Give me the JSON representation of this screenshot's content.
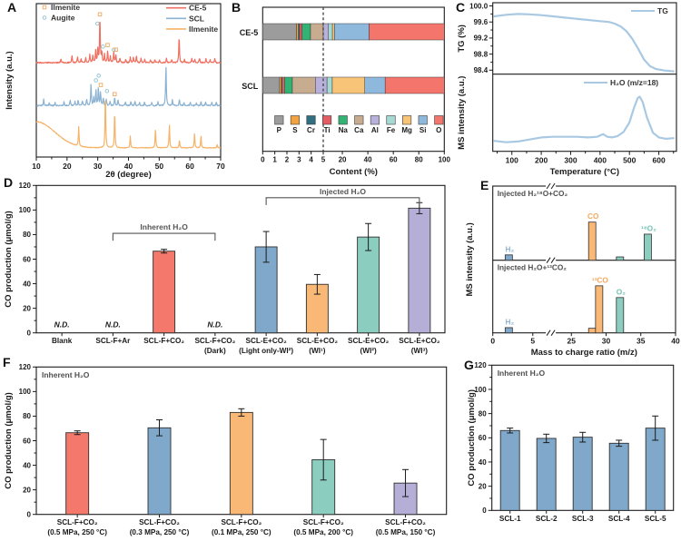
{
  "palette": {
    "red": "#F4796C",
    "blue": "#7FA8CB",
    "orange": "#FAB876",
    "teal": "#8BCEC0",
    "purple": "#B5AFD7",
    "frame": "#1a1a1a",
    "annotation_gray": "#4f4f4f",
    "bracket_gray": "#555555"
  },
  "chart_data": [
    {
      "panel_letter": "A",
      "type": "line",
      "kind": "xrd",
      "xlabel": "2θ (degree)",
      "ylabel": "Intensity (a.u.)",
      "xlim": [
        10,
        70
      ],
      "xticks": [
        10,
        20,
        30,
        40,
        50,
        60,
        70
      ],
      "marker_legend": [
        {
          "label": "Ilmenite",
          "marker": "square",
          "color": "#F0A860"
        },
        {
          "label": "Augite",
          "marker": "circle",
          "color": "#8FC0CE"
        }
      ],
      "line_legend": [
        {
          "label": "CE-5",
          "color": "#EF6F60"
        },
        {
          "label": "SCL",
          "color": "#8AB2D2"
        },
        {
          "label": "Ilmenite",
          "color": "#F6B266"
        }
      ],
      "series": [
        {
          "name": "CE-5",
          "color": "#EF6F60",
          "baseline": 0.615,
          "amp": 0.4,
          "noise": 0.008,
          "peaks": [
            [
              18,
              0.07
            ],
            [
              21.6,
              0.12
            ],
            [
              23.4,
              0.09
            ],
            [
              24.6,
              0.06
            ],
            [
              26.1,
              0.08
            ],
            [
              27.4,
              0.14
            ],
            [
              28.4,
              0.12
            ],
            [
              29.3,
              0.2
            ],
            [
              30.0,
              0.24
            ],
            [
              30.7,
              0.78
            ],
            [
              31.3,
              0.18
            ],
            [
              32.2,
              0.13
            ],
            [
              33.2,
              0.2
            ],
            [
              34.1,
              0.1
            ],
            [
              35.2,
              0.18
            ],
            [
              35.9,
              0.13
            ],
            [
              37.2,
              0.07
            ],
            [
              39.1,
              0.06
            ],
            [
              40.6,
              0.1
            ],
            [
              41.6,
              0.09
            ],
            [
              42.6,
              0.11
            ],
            [
              44.1,
              0.07
            ],
            [
              45.3,
              0.05
            ],
            [
              47.2,
              0.05
            ],
            [
              48.6,
              0.06
            ],
            [
              50.1,
              0.05
            ],
            [
              52.4,
              0.07
            ],
            [
              54.1,
              0.06
            ],
            [
              56.5,
              0.45
            ],
            [
              58.2,
              0.05
            ],
            [
              60.6,
              0.07
            ],
            [
              61.6,
              0.06
            ],
            [
              63.1,
              0.08
            ],
            [
              65.2,
              0.06
            ],
            [
              66.6,
              0.05
            ],
            [
              68.1,
              0.06
            ]
          ]
        },
        {
          "name": "SCL",
          "color": "#8AB2D2",
          "baseline": 0.335,
          "amp": 0.4,
          "noise": 0.008,
          "peaks": [
            [
              12.4,
              0.1
            ],
            [
              14.2,
              0.05
            ],
            [
              16.1,
              0.05
            ],
            [
              19,
              0.06
            ],
            [
              21,
              0.09
            ],
            [
              22.6,
              0.07
            ],
            [
              23.6,
              0.09
            ],
            [
              25,
              0.08
            ],
            [
              26.4,
              0.11
            ],
            [
              27.8,
              0.36
            ],
            [
              28.7,
              0.13
            ],
            [
              29.4,
              0.26
            ],
            [
              30.2,
              0.3
            ],
            [
              30.9,
              0.22
            ],
            [
              31.8,
              0.13
            ],
            [
              32.8,
              0.11
            ],
            [
              34,
              0.07
            ],
            [
              35.5,
              0.13
            ],
            [
              36.6,
              0.09
            ],
            [
              39,
              0.06
            ],
            [
              40.8,
              0.07
            ],
            [
              42.1,
              0.08
            ],
            [
              43.6,
              0.06
            ],
            [
              45.2,
              0.05
            ],
            [
              47.6,
              0.05
            ],
            [
              49.6,
              0.06
            ],
            [
              52.2,
              0.68
            ],
            [
              54.3,
              0.09
            ],
            [
              56.6,
              0.11
            ],
            [
              58.1,
              0.05
            ],
            [
              60.1,
              0.06
            ],
            [
              62.1,
              0.05
            ],
            [
              63.6,
              0.07
            ],
            [
              65.1,
              0.06
            ],
            [
              67.1,
              0.05
            ],
            [
              68.6,
              0.06
            ]
          ]
        },
        {
          "name": "Ilmenite",
          "color": "#F6B266",
          "baseline": 0.06,
          "amp": 0.42,
          "noise": 0.004,
          "hump": {
            "amp": 0.17,
            "center": 10,
            "width": 8.5
          },
          "peaks": [
            [
              23.8,
              0.3
            ],
            [
              32.5,
              0.88
            ],
            [
              35.5,
              0.58
            ],
            [
              40.6,
              0.18
            ],
            [
              48.8,
              0.3
            ],
            [
              53.3,
              0.36
            ],
            [
              56.6,
              0.12
            ],
            [
              61.5,
              0.22
            ],
            [
              63.6,
              0.19
            ],
            [
              68.9,
              0.05
            ]
          ]
        }
      ],
      "peak_markers": [
        {
          "x": 29.9,
          "y": 0.87,
          "marker": "circle"
        },
        {
          "x": 30.7,
          "y": 0.93,
          "marker": "square"
        },
        {
          "x": 31.7,
          "y": 0.72,
          "marker": "circle"
        },
        {
          "x": 33.2,
          "y": 0.73,
          "marker": "square"
        },
        {
          "x": 35.2,
          "y": 0.7,
          "marker": "circle"
        },
        {
          "x": 35.9,
          "y": 0.7,
          "marker": "square"
        },
        {
          "x": 29.4,
          "y": 0.5,
          "marker": "circle"
        },
        {
          "x": 30.3,
          "y": 0.53,
          "marker": "circle"
        },
        {
          "x": 31.0,
          "y": 0.47,
          "marker": "square"
        },
        {
          "x": 33.0,
          "y": 0.43,
          "marker": "circle"
        },
        {
          "x": 35.5,
          "y": 0.41,
          "marker": "square"
        }
      ]
    },
    {
      "panel_letter": "B",
      "type": "bar",
      "kind": "stacked_h",
      "xlabel": "Content (%)",
      "axis_split_value": 5,
      "axis_split_fraction": 0.3335,
      "xmax": 100,
      "xticks": [
        {
          "v": 0,
          "t": "0"
        },
        {
          "v": 1,
          "t": "1"
        },
        {
          "v": 2,
          "t": "2"
        },
        {
          "v": 3,
          "t": "3"
        },
        {
          "v": 4,
          "t": "4"
        },
        {
          "v": 5,
          "t": "5"
        },
        {
          "v": 20,
          "t": "20"
        },
        {
          "v": 40,
          "t": "40"
        },
        {
          "v": 60,
          "t": "60"
        },
        {
          "v": 80,
          "t": "80"
        },
        {
          "v": 100,
          "t": "100"
        }
      ],
      "dashed_line_at": 5,
      "elements": [
        {
          "symbol": "P",
          "color": "#9C9C9C"
        },
        {
          "symbol": "S",
          "color": "#F2A340"
        },
        {
          "symbol": "Cr",
          "color": "#2E6F80"
        },
        {
          "symbol": "Ti",
          "color": "#E25C64"
        },
        {
          "symbol": "Na",
          "color": "#32B373"
        },
        {
          "symbol": "Ca",
          "color": "#C7AC8F"
        },
        {
          "symbol": "Al",
          "color": "#B7B1DB"
        },
        {
          "symbol": "Fe",
          "color": "#A6D9D2"
        },
        {
          "symbol": "Mg",
          "color": "#F8C478"
        },
        {
          "symbol": "Si",
          "color": "#8FB9DC"
        },
        {
          "symbol": "O",
          "color": "#F4756B"
        }
      ],
      "rows": [
        {
          "label": "CE-5",
          "values": [
            2.8,
            0.15,
            0.1,
            0.2,
            0.7,
            1.05,
            4.1,
            3.1,
            1.6,
            27.2,
            59.0
          ]
        },
        {
          "label": "SCL",
          "values": [
            1.4,
            0.15,
            0.05,
            0.2,
            0.65,
            1.9,
            3.6,
            4.15,
            25.5,
            16.0,
            46.4
          ]
        }
      ]
    },
    {
      "panel_letter": "C",
      "type": "line",
      "kind": "tg_ms",
      "xlabel": "Temperature (°C)",
      "xlim": [
        35,
        660
      ],
      "xticks": [
        100,
        200,
        300,
        400,
        500,
        600
      ],
      "line_color": "#A9C9E3",
      "top": {
        "ylabel": "TG (%)",
        "legend": "TG",
        "ylim": [
          98.3,
          100.08
        ],
        "yticks": [
          {
            "v": 100.0,
            "t": "100.0"
          },
          {
            "v": 99.6,
            "t": "99.6"
          },
          {
            "v": 99.2,
            "t": "99.2"
          },
          {
            "v": 98.8,
            "t": "98.8"
          },
          {
            "v": 98.4,
            "t": "98.4"
          }
        ],
        "yminor": [
          99.8,
          99.4,
          99.0,
          98.6
        ],
        "x": [
          40,
          80,
          120,
          160,
          200,
          240,
          280,
          320,
          360,
          400,
          430,
          450,
          470,
          490,
          510,
          530,
          550,
          570,
          590,
          620,
          650
        ],
        "y": [
          99.74,
          99.78,
          99.8,
          99.79,
          99.77,
          99.74,
          99.71,
          99.68,
          99.65,
          99.62,
          99.6,
          99.56,
          99.49,
          99.37,
          99.18,
          98.93,
          98.66,
          98.5,
          98.43,
          98.39,
          98.37
        ]
      },
      "bottom": {
        "ylabel": "MS intensity (a.u.)",
        "legend": "H₂O (m/z=18)",
        "x": [
          40,
          80,
          120,
          160,
          200,
          240,
          280,
          320,
          360,
          390,
          410,
          425,
          440,
          460,
          480,
          500,
          515,
          528,
          535,
          545,
          560,
          580,
          600,
          625,
          650
        ],
        "y": [
          0.1,
          0.08,
          0.09,
          0.12,
          0.15,
          0.16,
          0.16,
          0.16,
          0.15,
          0.16,
          0.2,
          0.16,
          0.15,
          0.17,
          0.23,
          0.37,
          0.58,
          0.73,
          0.75,
          0.67,
          0.44,
          0.22,
          0.15,
          0.13,
          0.14
        ]
      }
    },
    {
      "panel_letter": "D",
      "type": "bar",
      "kind": "bars_v",
      "ylabel": "CO production (μmol/g)",
      "ylim": [
        0,
        120
      ],
      "yticks": [
        0,
        20,
        40,
        60,
        80,
        100,
        120
      ],
      "nd_label": "N.D.",
      "categories": [
        {
          "line1": "Blank"
        },
        {
          "line1": "SCL-F+Ar"
        },
        {
          "line1": "SCL-F+CO₂"
        },
        {
          "line1": "SCL-F+CO₂",
          "line2": "(Dark)"
        },
        {
          "line1": "SCL-E+CO₂",
          "line2": "(Light only-WI²)"
        },
        {
          "line1": "SCL-E+CO₂",
          "line2": "(WI¹)"
        },
        {
          "line1": "SCL-E+CO₂",
          "line2": "(WI²)"
        },
        {
          "line1": "SCL-E+CO₂",
          "line2": "(WI³)"
        }
      ],
      "values": [
        null,
        null,
        66.5,
        null,
        70,
        39.5,
        78,
        101.5
      ],
      "errors": [
        null,
        null,
        1.5,
        null,
        12.5,
        8,
        11,
        4.5
      ],
      "bar_colors": [
        null,
        null,
        "red",
        null,
        "blue",
        "orange",
        "teal",
        "purple"
      ],
      "brackets": [
        {
          "label": "Inherent H₂O",
          "from": 1,
          "to": 3,
          "y": 81
        },
        {
          "label": "Injected H₂O",
          "from": 4,
          "to": 7,
          "y": 110
        }
      ]
    },
    {
      "panel_letter": "E",
      "type": "bar",
      "kind": "ms_bars",
      "xlabel": "Mass to charge ratio (m/z)",
      "ylabel": "MS intensity (a.u.)",
      "xticks": [
        {
          "v": 0,
          "t": "0"
        },
        {
          "v": 5,
          "t": "5"
        },
        {
          "v": 25,
          "t": "25"
        },
        {
          "v": 30,
          "t": "30"
        },
        {
          "v": 35,
          "t": "35"
        },
        {
          "v": 40,
          "t": "40"
        }
      ],
      "panels": [
        {
          "annotation": "Injected H₂¹⁸O+CO₂",
          "bars": [
            {
              "mz": 2,
              "h": 0.08,
              "color": "blue",
              "label": "H₂",
              "label_color": "#8FB4D4"
            },
            {
              "mz": 28,
              "h": 0.57,
              "color": "orange",
              "label": "CO",
              "label_color": "#F5A95F"
            },
            {
              "mz": 32,
              "h": 0.05,
              "color": "teal"
            },
            {
              "mz": 36,
              "h": 0.39,
              "color": "teal",
              "label": "¹⁸O₂",
              "label_color": "#72C3B2"
            }
          ]
        },
        {
          "annotation": "Injected H₂O+¹³CO₂",
          "bars": [
            {
              "mz": 2,
              "h": 0.08,
              "color": "blue",
              "label": "H₂",
              "label_color": "#8FB4D4"
            },
            {
              "mz": 28,
              "h": 0.07,
              "color": "orange"
            },
            {
              "mz": 29,
              "h": 0.72,
              "color": "orange",
              "label": "¹³CO",
              "label_color": "#F5A95F"
            },
            {
              "mz": 32,
              "h": 0.54,
              "color": "teal",
              "label": "O₂",
              "label_color": "#72C3B2"
            }
          ]
        }
      ]
    },
    {
      "panel_letter": "F",
      "type": "bar",
      "kind": "bars_v",
      "ylabel": "CO production (μmol/g)",
      "ylim": [
        0,
        120
      ],
      "yticks": [
        0,
        20,
        40,
        60,
        80,
        100,
        120
      ],
      "annotation": "Inherent H₂O",
      "categories": [
        {
          "line1": "SCL-F+CO₂",
          "line2": "(0.5 MPa, 250 °C)"
        },
        {
          "line1": "SCL-F+CO₂",
          "line2": "(0.3 MPa, 250 °C)"
        },
        {
          "line1": "SCL-F+CO₂",
          "line2": "(0.1 MPa, 250 °C)"
        },
        {
          "line1": "SCL-F+CO₂",
          "line2": "(0.5 MPa, 200 °C)"
        },
        {
          "line1": "SCL-F+CO₂",
          "line2": "(0.5 MPa, 150 °C)"
        }
      ],
      "values": [
        66.5,
        70.5,
        83,
        44.5,
        25.5
      ],
      "errors": [
        1.5,
        6.5,
        3,
        16.5,
        11
      ],
      "bar_colors": [
        "red",
        "blue",
        "orange",
        "teal",
        "purple"
      ]
    },
    {
      "panel_letter": "G",
      "type": "bar",
      "kind": "bars_v",
      "ylabel": "CO production (μmol/g)",
      "ylim": [
        0,
        120
      ],
      "yticks": [
        0,
        20,
        40,
        60,
        80,
        100,
        120
      ],
      "annotation": "Inherent H₂O",
      "categories": [
        {
          "line1": "SCL-1"
        },
        {
          "line1": "SCL-2"
        },
        {
          "line1": "SCL-3"
        },
        {
          "line1": "SCL-4"
        },
        {
          "line1": "SCL-5"
        }
      ],
      "values": [
        66,
        59.5,
        60.5,
        55.5,
        68
      ],
      "errors": [
        2,
        3.5,
        4,
        2.5,
        10
      ],
      "bar_colors": [
        "blue",
        "blue",
        "blue",
        "blue",
        "blue"
      ]
    }
  ]
}
